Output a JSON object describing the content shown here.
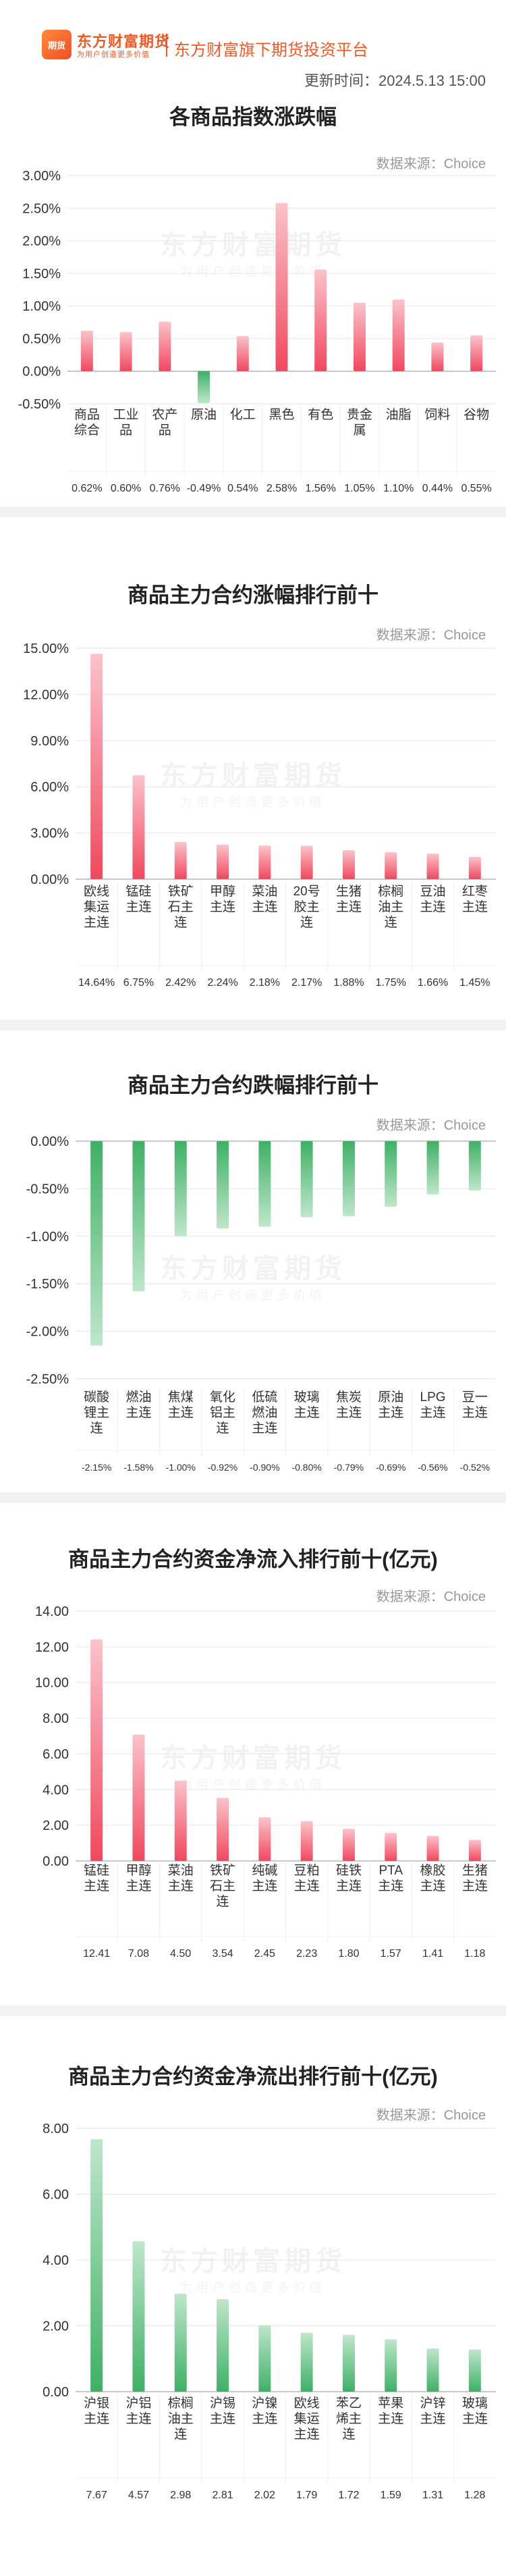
{
  "header": {
    "logo_badge": "期货",
    "logo_name": "东方财富期货",
    "logo_slogan": "为用户创造更多价值",
    "platform": "东方财富旗下期货投资平台",
    "update_time": "更新时间：2024.5.13 15:00"
  },
  "watermark": {
    "main": "东方财富期货",
    "sub": "为用户创造更多价值"
  },
  "source_label": "数据来源：Choice",
  "colors": {
    "up": "#f0485f",
    "up_light": "#fbc3cb",
    "down": "#3fb066",
    "down_light": "#bfe6cb"
  },
  "chart_data": [
    {
      "type": "bar",
      "title": "各商品指数涨跌幅",
      "categories": [
        "商品综合",
        "工业品",
        "农产品",
        "原油",
        "化工",
        "黑色",
        "有色",
        "贵金属",
        "油脂",
        "饲料",
        "谷物"
      ],
      "values": [
        0.62,
        0.6,
        0.76,
        -0.49,
        0.54,
        2.58,
        1.56,
        1.05,
        1.1,
        0.44,
        0.55
      ],
      "value_labels": [
        "0.62%",
        "0.60%",
        "0.76%",
        "-0.49%",
        "0.54%",
        "2.58%",
        "1.56%",
        "1.05%",
        "1.10%",
        "0.44%",
        "0.55%"
      ],
      "ylim": [
        -0.5,
        3.0
      ],
      "yticks": [
        3.0,
        2.5,
        2.0,
        1.5,
        1.0,
        0.5,
        0.0,
        -0.5
      ],
      "ytick_labels": [
        "3.00%",
        "2.50%",
        "2.00%",
        "1.50%",
        "1.00%",
        "0.50%",
        "0.00%",
        "-0.50%"
      ],
      "color_mode": "sign",
      "grid": true
    },
    {
      "type": "bar",
      "title": "商品主力合约涨幅排行前十",
      "categories": [
        "欧线集运主连",
        "锰硅主连",
        "铁矿石主连",
        "甲醇主连",
        "菜油主连",
        "20号胶主连",
        "生猪主连",
        "棕榈油主连",
        "豆油主连",
        "红枣主连"
      ],
      "values": [
        14.64,
        6.75,
        2.42,
        2.24,
        2.18,
        2.17,
        1.88,
        1.75,
        1.66,
        1.45
      ],
      "value_labels": [
        "14.64%",
        "6.75%",
        "2.42%",
        "2.24%",
        "2.18%",
        "2.17%",
        "1.88%",
        "1.75%",
        "1.66%",
        "1.45%"
      ],
      "ylim": [
        0,
        15
      ],
      "yticks": [
        15,
        12,
        9,
        6,
        3,
        0
      ],
      "ytick_labels": [
        "15.00%",
        "12.00%",
        "9.00%",
        "6.00%",
        "3.00%",
        "0.00%"
      ],
      "color_mode": "up",
      "grid": true
    },
    {
      "type": "bar",
      "title": "商品主力合约跌幅排行前十",
      "categories": [
        "碳酸锂主连",
        "燃油主连",
        "焦煤主连",
        "氧化铝主连",
        "低硫燃油主连",
        "玻璃主连",
        "焦炭主连",
        "原油主连",
        "LPG主连",
        "豆一主连"
      ],
      "values": [
        -2.15,
        -1.58,
        -1.0,
        -0.92,
        -0.9,
        -0.8,
        -0.79,
        -0.69,
        -0.56,
        -0.52
      ],
      "value_labels": [
        "-2.15%",
        "-1.58%",
        "-1.00%",
        "-0.92%",
        "-0.90%",
        "-0.80%",
        "-0.79%",
        "-0.69%",
        "-0.56%",
        "-0.52%"
      ],
      "ylim": [
        -2.5,
        0
      ],
      "yticks": [
        0,
        -0.5,
        -1.0,
        -1.5,
        -2.0,
        -2.5
      ],
      "ytick_labels": [
        "0.00%",
        "-0.50%",
        "-1.00%",
        "-1.50%",
        "-2.00%",
        "-2.50%"
      ],
      "color_mode": "down",
      "grid": true
    },
    {
      "type": "bar",
      "title": "商品主力合约资金净流入排行前十(亿元)",
      "categories": [
        "锰硅主连",
        "甲醇主连",
        "菜油主连",
        "铁矿石主连",
        "纯碱主连",
        "豆粕主连",
        "硅铁主连",
        "PTA主连",
        "橡胶主连",
        "生猪主连"
      ],
      "values": [
        12.41,
        7.08,
        4.5,
        3.54,
        2.45,
        2.23,
        1.8,
        1.57,
        1.41,
        1.18
      ],
      "value_labels": [
        "12.41",
        "7.08",
        "4.50",
        "3.54",
        "2.45",
        "2.23",
        "1.80",
        "1.57",
        "1.41",
        "1.18"
      ],
      "ylim": [
        0,
        14
      ],
      "yticks": [
        14,
        12,
        10,
        8,
        6,
        4,
        2,
        0
      ],
      "ytick_labels": [
        "14.00",
        "12.00",
        "10.00",
        "8.00",
        "6.00",
        "4.00",
        "2.00",
        "0.00"
      ],
      "color_mode": "up",
      "grid": true
    },
    {
      "type": "bar",
      "title": "商品主力合约资金净流出排行前十(亿元)",
      "categories": [
        "沪银主连",
        "沪铝主连",
        "棕榈油主连",
        "沪锡主连",
        "沪镍主连",
        "欧线集运主连",
        "苯乙烯主连",
        "苹果主连",
        "沪锌主连",
        "玻璃主连"
      ],
      "values": [
        7.67,
        4.57,
        2.98,
        2.81,
        2.02,
        1.79,
        1.72,
        1.59,
        1.31,
        1.28
      ],
      "value_labels": [
        "7.67",
        "4.57",
        "2.98",
        "2.81",
        "2.02",
        "1.79",
        "1.72",
        "1.59",
        "1.31",
        "1.28"
      ],
      "ylim": [
        0,
        8
      ],
      "yticks": [
        8,
        6,
        4,
        2,
        0
      ],
      "ytick_labels": [
        "8.00",
        "6.00",
        "4.00",
        "2.00",
        "0.00"
      ],
      "color_mode": "down",
      "grid": true
    }
  ]
}
